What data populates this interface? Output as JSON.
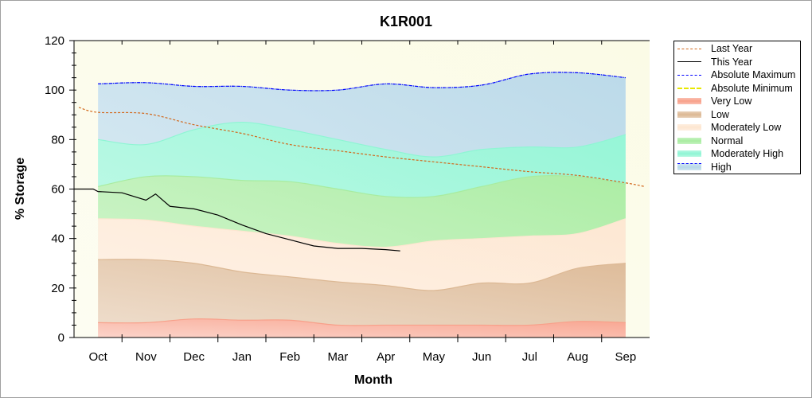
{
  "chart_data": {
    "type": "area",
    "title": "K1R001",
    "xlabel": "Month",
    "ylabel": "% Storage",
    "ylim": [
      0,
      120
    ],
    "yticks": [
      0,
      20,
      40,
      60,
      80,
      100,
      120
    ],
    "categories": [
      "Oct",
      "Nov",
      "Dec",
      "Jan",
      "Feb",
      "Mar",
      "Apr",
      "May",
      "Jun",
      "Jul",
      "Aug",
      "Sep"
    ],
    "xlim": [
      -0.5,
      11.5
    ],
    "bands": [
      {
        "name": "Very Low",
        "color": "#f8a08a",
        "upper": [
          6,
          6,
          7.5,
          7,
          7,
          5,
          5,
          5,
          5,
          5,
          6.5,
          6
        ]
      },
      {
        "name": "Low",
        "color": "#dcb894",
        "upper": [
          31.5,
          31.5,
          30,
          26.5,
          24.5,
          22.5,
          21,
          19,
          22,
          22,
          28,
          30
        ]
      },
      {
        "name": "Moderately Low",
        "color": "#fde6d0",
        "upper": [
          48,
          47.5,
          45,
          43,
          41,
          38,
          36.5,
          39,
          40,
          41,
          42,
          48
        ]
      },
      {
        "name": "Normal",
        "color": "#a8eca0",
        "upper": [
          61,
          65,
          65,
          63.5,
          63,
          60,
          57,
          57,
          61,
          65,
          65,
          62
        ]
      },
      {
        "name": "Moderately High",
        "color": "#8ff5d4",
        "upper": [
          80,
          78,
          84,
          87,
          84,
          80,
          76,
          73,
          76,
          77,
          77,
          82
        ]
      },
      {
        "name": "High",
        "color": "#b8d8e8",
        "upper": [
          102.5,
          103,
          101.5,
          101.5,
          100,
          100,
          102.5,
          101,
          102,
          106.5,
          107,
          105
        ]
      }
    ],
    "series": [
      {
        "name": "Last Year",
        "color": "#d2691e",
        "style": "dashed",
        "x": [
          -0.4,
          0,
          1,
          2,
          3,
          4,
          5,
          6,
          7,
          8,
          9,
          10,
          11,
          11.4
        ],
        "y": [
          93,
          91,
          90.5,
          86,
          82.5,
          78,
          75.5,
          73,
          71,
          69,
          67,
          65.5,
          62.5,
          61
        ]
      },
      {
        "name": "This Year",
        "color": "#000000",
        "style": "solid",
        "x": [
          -0.5,
          -0.1,
          0,
          0.5,
          1,
          1.2,
          1.5,
          2,
          2.5,
          3,
          3.5,
          4,
          4.5,
          5,
          5.5,
          6,
          6.3
        ],
        "y": [
          60,
          60,
          59,
          58.5,
          55.5,
          58,
          53,
          52,
          49.5,
          45.5,
          42,
          39.5,
          37,
          36,
          36,
          35.5,
          35
        ]
      },
      {
        "name": "Absolute Maximum",
        "color": "#0000ff",
        "style": "dashdot",
        "x": [
          0,
          1,
          2,
          3,
          4,
          5,
          6,
          7,
          8,
          9,
          10,
          11
        ],
        "y": [
          102.5,
          103,
          101.5,
          101.5,
          100,
          100,
          102.5,
          101,
          102,
          106.5,
          107,
          105
        ]
      },
      {
        "name": "Absolute Minimum",
        "color": "#e8e800",
        "style": "dashdot",
        "x": [],
        "y": []
      }
    ],
    "legend": [
      "Last Year",
      "This Year",
      "Absolute Maximum",
      "Absolute Minimum",
      "Very Low",
      "Low",
      "Moderately Low",
      "Normal",
      "Moderately High",
      "High"
    ],
    "legend_position": "right"
  }
}
